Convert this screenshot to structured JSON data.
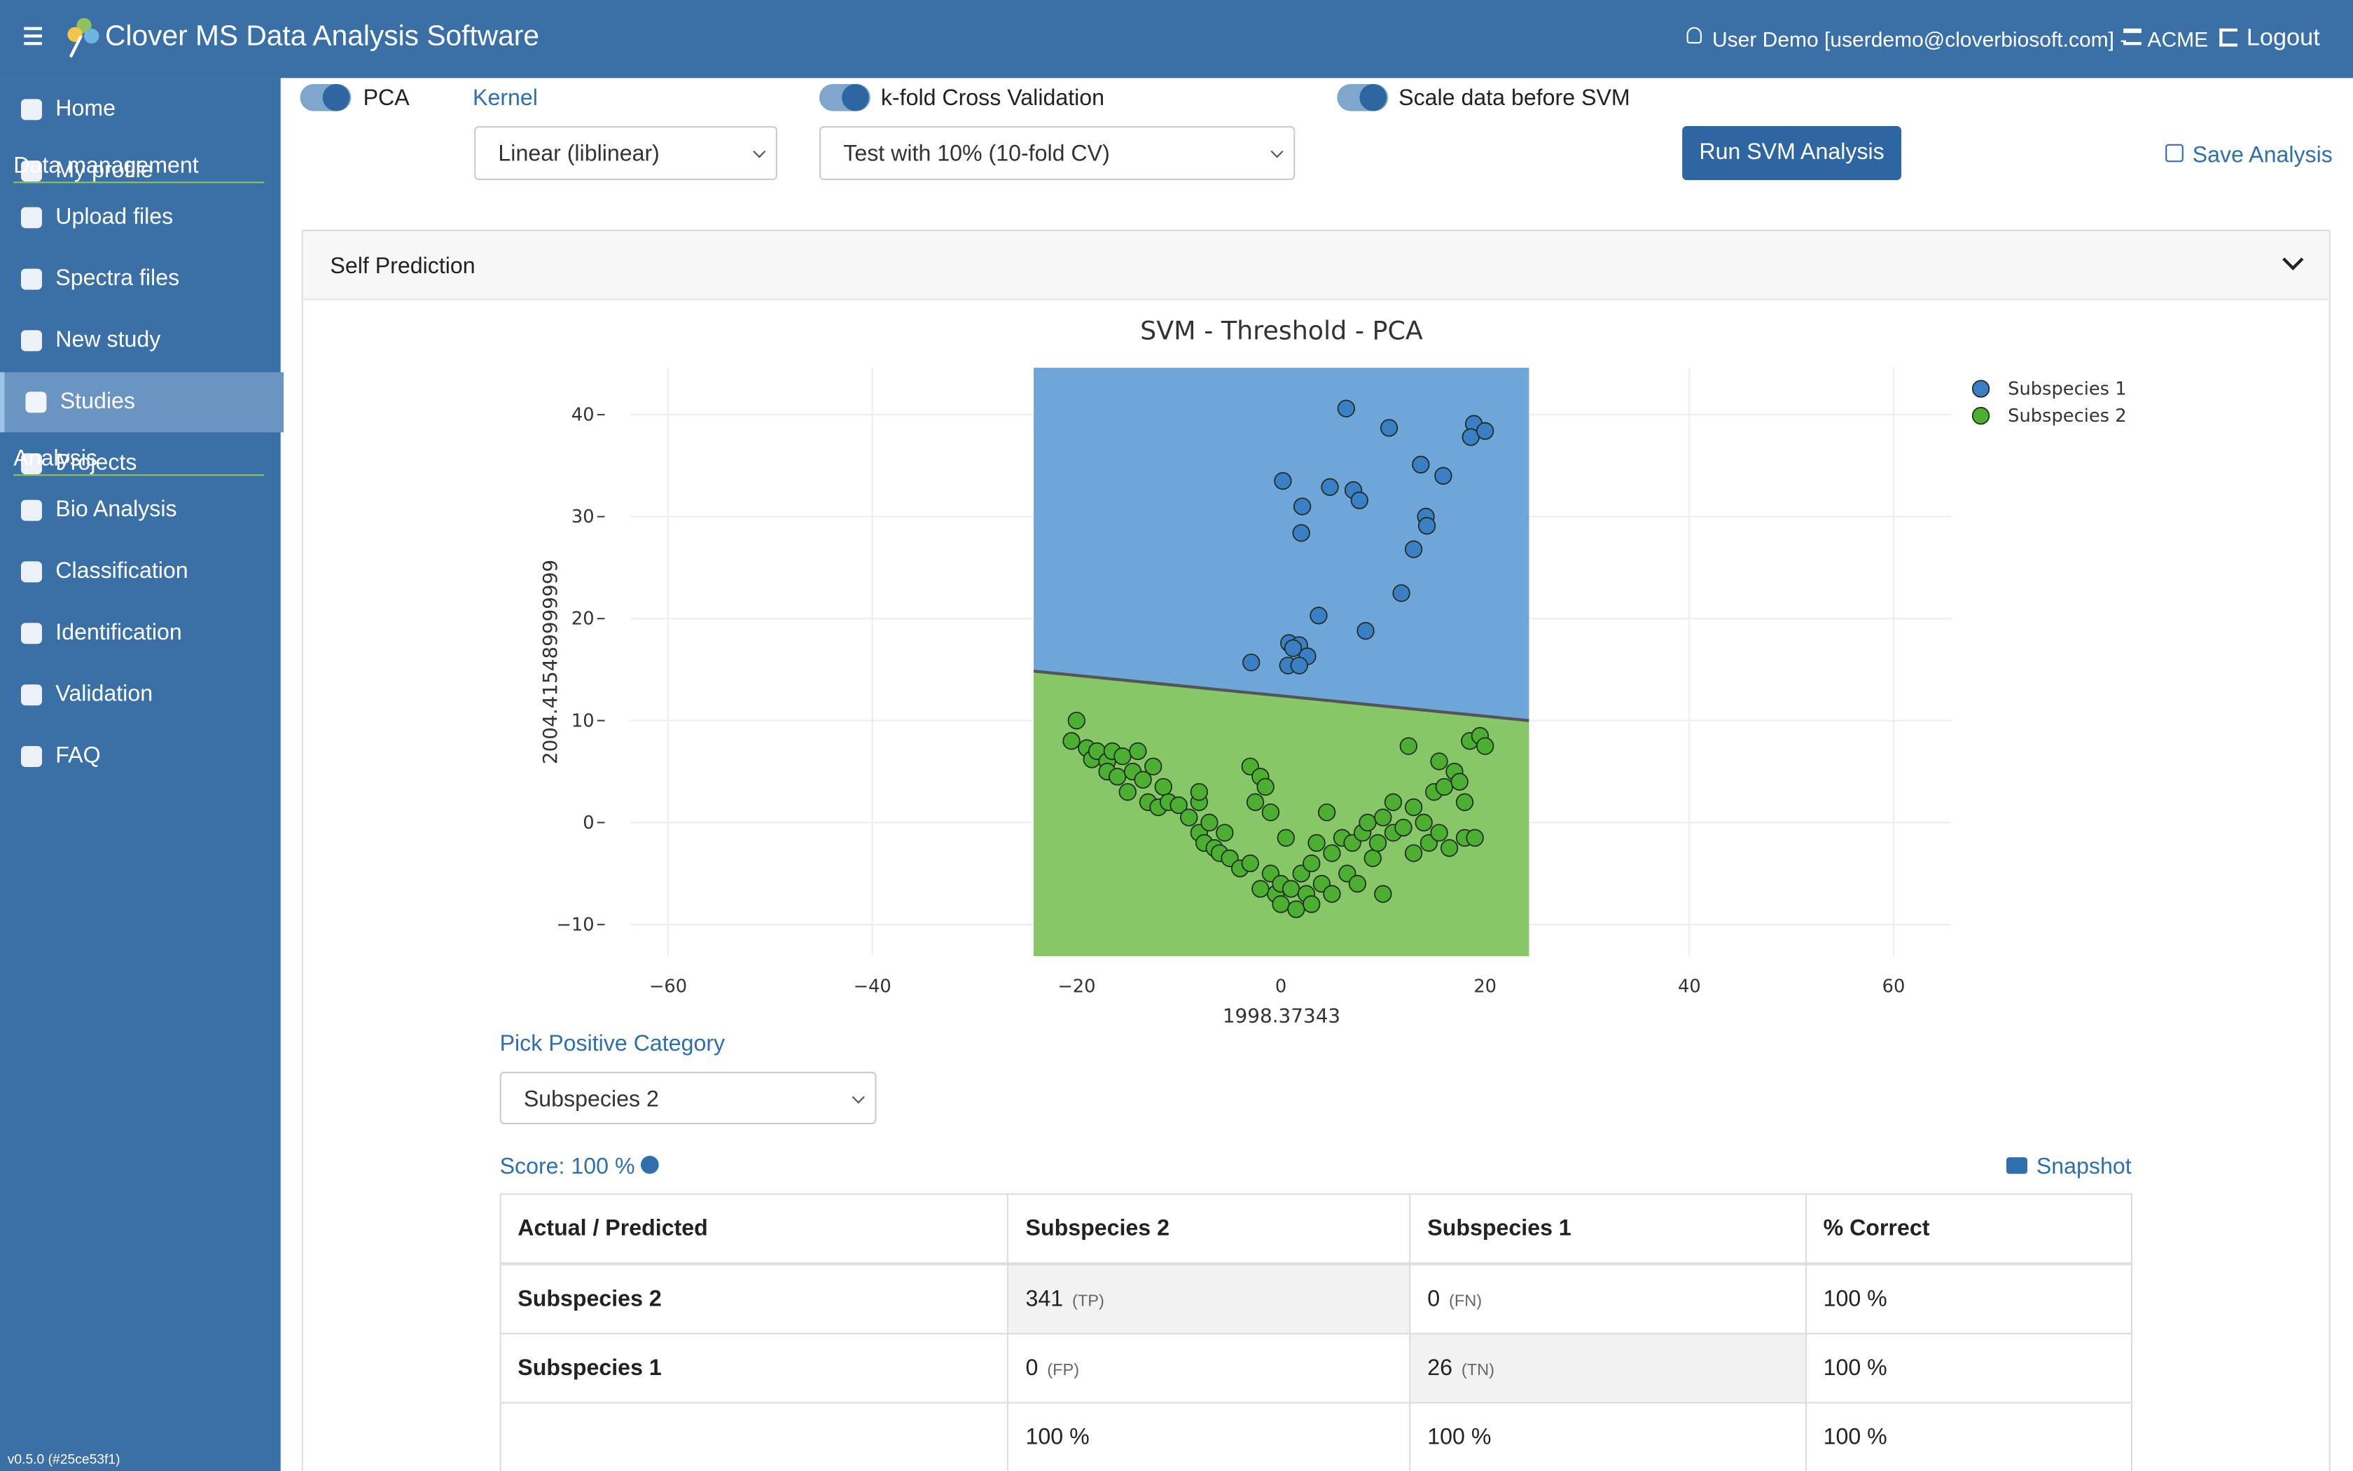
{
  "header": {
    "title": "Clover MS Data Analysis Software",
    "user": "User Demo [userdemo@cloverbiosoft.com] -",
    "org": "ACME",
    "logout": "Logout"
  },
  "sidebar": {
    "groups": [
      {
        "items": [
          {
            "label": "Home"
          },
          {
            "label": "My profile"
          }
        ]
      },
      {
        "heading": "Data management",
        "items": [
          {
            "label": "Upload files"
          },
          {
            "label": "Spectra files"
          },
          {
            "label": "New study"
          },
          {
            "label": "Studies",
            "active": true
          },
          {
            "label": "Projects"
          }
        ]
      },
      {
        "heading": "Analysis",
        "items": [
          {
            "label": "Bio Analysis"
          },
          {
            "label": "Classification"
          },
          {
            "label": "Identification"
          },
          {
            "label": "Validation"
          },
          {
            "label": "FAQ"
          }
        ]
      }
    ],
    "version": "v0.5.0 (#25ce53f1)"
  },
  "controls": {
    "pca": "PCA",
    "kernel_label": "Kernel",
    "kernel": "Linear (liblinear)",
    "kfold": "k-fold Cross Validation",
    "kfold_option": "Test with 10% (10-fold CV)",
    "scale": "Scale data before SVM",
    "run": "Run SVM Analysis",
    "save": "Save Analysis"
  },
  "panel": {
    "title": "Self Prediction",
    "pick_label": "Pick Positive Category",
    "pick": "Subspecies 2",
    "score": "Score: 100 %",
    "snapshot": "Snapshot"
  },
  "chart_data": {
    "type": "scatter",
    "title": "SVM - Threshold - PCA",
    "x_label": "1998.37343",
    "y_label": "2004.415489999999",
    "xlim": [
      -63.7,
      65.6
    ],
    "ylim": [
      -13.1,
      44.6
    ],
    "xticks": [
      {
        "value": -60,
        "label": "−60"
      },
      {
        "value": -40,
        "label": "−40"
      },
      {
        "value": -20,
        "label": "−20"
      },
      0,
      20,
      40,
      60
    ],
    "yticks": [
      {
        "value": -10,
        "label": "−10"
      },
      0,
      10,
      20,
      30,
      40
    ],
    "grid": true,
    "legend": "top-right",
    "regions": {
      "x": [
        -24.2,
        24.3
      ],
      "boundary_y": [
        14.85,
        10.0
      ],
      "upper_color": "#6fa6d9",
      "lower_color": "#88c767"
    },
    "series": [
      {
        "name": "Subspecies 1",
        "color": "#3a7fc4",
        "x": [
          6.4,
          10.6,
          18.9,
          18.6,
          20.0,
          0.2,
          4.8,
          7.1,
          7.7,
          13.7,
          15.9,
          2.1,
          14.2,
          14.3,
          2.0,
          13.0,
          11.8,
          3.7,
          8.3,
          -2.9,
          0.8,
          1.8,
          2.6,
          0.7,
          1.8,
          1.2
        ],
        "values": [
          40.6,
          38.7,
          39.1,
          37.8,
          38.4,
          33.5,
          32.9,
          32.6,
          31.6,
          35.1,
          34.0,
          31.0,
          30.0,
          29.1,
          28.4,
          26.8,
          22.5,
          20.3,
          18.8,
          15.7,
          17.6,
          17.4,
          16.3,
          15.4,
          15.4,
          17.1
        ]
      },
      {
        "name": "Subspecies 2",
        "color": "#4caf32",
        "x": [
          -20,
          -20.5,
          -19,
          -18.5,
          -18,
          -17,
          -17,
          -16.5,
          -16,
          -15.5,
          -15,
          -14.5,
          -14,
          -13.5,
          -13,
          -12.5,
          -12,
          -11.5,
          -11,
          -10,
          -9,
          -8,
          -8,
          -7.5,
          -7,
          -6.5,
          -6,
          -5.5,
          -5,
          -4,
          -3,
          -2.5,
          -2,
          -1.5,
          -1,
          -1,
          -0.5,
          0,
          0.5,
          0,
          1,
          1.5,
          2,
          2.5,
          3,
          3,
          3.5,
          4,
          4.5,
          5,
          5,
          6,
          6.5,
          7,
          7.5,
          8,
          8.5,
          9,
          9.5,
          10,
          10,
          11,
          11,
          12,
          12.5,
          13,
          13,
          14,
          14.5,
          15,
          15.5,
          15.5,
          16,
          16.5,
          17,
          17.5,
          18,
          18,
          18.5,
          19,
          19.5,
          20,
          -8,
          -3,
          -2
        ],
        "values": [
          10,
          8,
          7.3,
          6.2,
          7,
          6,
          5,
          7,
          4.5,
          6.5,
          3,
          5,
          7,
          4.2,
          2,
          5.5,
          1.5,
          3.5,
          2,
          1.7,
          0.5,
          2,
          -1,
          -2,
          0,
          -2.5,
          -3,
          -1,
          -3.5,
          -4.5,
          5.5,
          2,
          4.5,
          3.5,
          -5,
          1,
          -7,
          -6,
          -1.5,
          -8,
          -6.5,
          -8.5,
          -5,
          -7,
          -4,
          -8,
          -2,
          -6,
          1,
          -7,
          -3,
          -1.5,
          -5,
          -2,
          -6,
          -1,
          0,
          -3.5,
          -2,
          0.5,
          -7,
          -1,
          2,
          -0.5,
          7.5,
          -3,
          1.5,
          0,
          -2,
          3,
          -1,
          6,
          3.5,
          -2.5,
          5,
          4,
          -1.5,
          2,
          8,
          -1.5,
          8.5,
          7.5,
          3,
          -4,
          -6.5
        ]
      }
    ]
  },
  "table": {
    "header": [
      "Actual / Predicted",
      "Subspecies 2",
      "Subspecies 1",
      "% Correct"
    ],
    "rows": [
      [
        {
          "text": "Subspecies 2"
        },
        {
          "text": "341",
          "tag": "(TP)"
        },
        {
          "text": "0",
          "tag": "(FN)"
        },
        {
          "text": "100 %"
        }
      ],
      [
        {
          "text": "Subspecies 1"
        },
        {
          "text": "0",
          "tag": "(FP)"
        },
        {
          "text": "26",
          "tag": "(TN)"
        },
        {
          "text": "100 %"
        }
      ],
      [
        null,
        {
          "text": "100 %"
        },
        {
          "text": "100 %"
        },
        {
          "text": "100 %"
        }
      ]
    ]
  }
}
